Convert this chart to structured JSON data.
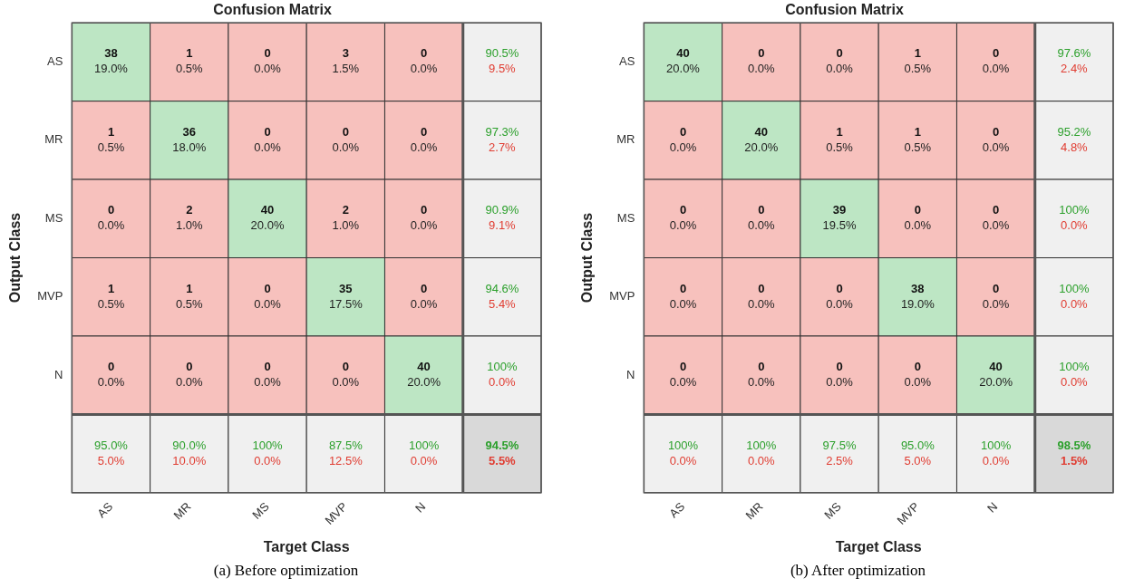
{
  "chart_data": [
    {
      "type": "heatmap",
      "title": "Confusion Matrix",
      "xlabel": "Target Class",
      "ylabel": "Output Class",
      "annotations": [
        "(a) Before optimization",
        "19.0%",
        "0.5%",
        "0.0%",
        "1.5%",
        "0.0%",
        "9.5%",
        "0.5%",
        "18.0%",
        "0.0%",
        "0.0%",
        "0.0%",
        "2.7%",
        "0.0%",
        "1.0%",
        "20.0%",
        "1.0%",
        "0.0%",
        "9.1%",
        "0.5%",
        "0.5%",
        "0.0%",
        "17.5%",
        "0.0%",
        "5.4%",
        "0.0%",
        "0.0%",
        "0.0%",
        "0.0%",
        "20.0%",
        "0.0%",
        "5.0%",
        "10.0%",
        "0.0%",
        "12.5%",
        "0.0%",
        "5.5%"
      ],
      "categories": [
        "AS",
        "MR",
        "MS",
        "MVP",
        "N",
        null
      ],
      "y_categories": [
        "AS",
        "MR",
        "MS",
        "MVP",
        "N",
        null
      ],
      "cells": [
        [
          38,
          1,
          0,
          3,
          0,
          90.5
        ],
        [
          1,
          36,
          0,
          0,
          0,
          97.3
        ],
        [
          0,
          2,
          40,
          2,
          0,
          90.9
        ],
        [
          1,
          1,
          0,
          35,
          0,
          94.6
        ],
        [
          0,
          0,
          0,
          0,
          40,
          100
        ],
        [
          95.0,
          90.0,
          100,
          87.5,
          100,
          94.5
        ]
      ],
      "cell_labels": [
        [
          "38",
          "1",
          "0",
          "3",
          "0",
          "90.5%"
        ],
        [
          "1",
          "36",
          "0",
          "0",
          "0",
          "97.3%"
        ],
        [
          "0",
          "2",
          "40",
          "2",
          "0",
          "90.9%"
        ],
        [
          "1",
          "1",
          "0",
          "35",
          "0",
          "94.6%"
        ],
        [
          "0",
          "0",
          "0",
          "0",
          "40",
          "100%"
        ],
        [
          "95.0%",
          "90.0%",
          "100%",
          "87.5%",
          "100%",
          "94.5%"
        ]
      ]
    },
    {
      "type": "heatmap",
      "title": "Confusion Matrix",
      "xlabel": "Target Class",
      "ylabel": "Output Class",
      "annotations": [
        "(b) After optimization",
        "20.0%",
        "0.0%",
        "0.0%",
        "0.5%",
        "0.0%",
        "2.4%",
        "0.0%",
        "20.0%",
        "0.5%",
        "0.5%",
        "0.0%",
        "4.8%",
        "0.0%",
        "0.0%",
        "19.5%",
        "0.0%",
        "0.0%",
        "0.0%",
        "0.0%",
        "0.0%",
        "0.0%",
        "19.0%",
        "0.0%",
        "0.0%",
        "0.0%",
        "0.0%",
        "0.0%",
        "0.0%",
        "20.0%",
        "0.0%",
        "0.0%",
        "0.0%",
        "2.5%",
        "5.0%",
        "0.0%",
        "1.5%"
      ],
      "categories": [
        "AS",
        "MR",
        "MS",
        "MVP",
        "N",
        null
      ],
      "y_categories": [
        "AS",
        "MR",
        "MS",
        "MVP",
        "N",
        null
      ],
      "cells": [
        [
          40,
          0,
          0,
          1,
          0,
          97.6
        ],
        [
          0,
          40,
          1,
          1,
          0,
          95.2
        ],
        [
          0,
          0,
          39,
          0,
          0,
          100
        ],
        [
          0,
          0,
          0,
          38,
          0,
          100
        ],
        [
          0,
          0,
          0,
          0,
          40,
          100
        ],
        [
          100,
          100,
          97.5,
          95.0,
          100,
          98.5
        ]
      ],
      "cell_labels": [
        [
          "40",
          "0",
          "0",
          "1",
          "0",
          "97.6%"
        ],
        [
          "0",
          "40",
          "1",
          "1",
          "0",
          "95.2%"
        ],
        [
          "0",
          "0",
          "39",
          "0",
          "0",
          "100%"
        ],
        [
          "0",
          "0",
          "0",
          "38",
          "0",
          "100%"
        ],
        [
          "0",
          "0",
          "0",
          "0",
          "40",
          "100%"
        ],
        [
          "100%",
          "100%",
          "97.5%",
          "95.0%",
          "100%",
          "98.5%"
        ]
      ]
    }
  ]
}
